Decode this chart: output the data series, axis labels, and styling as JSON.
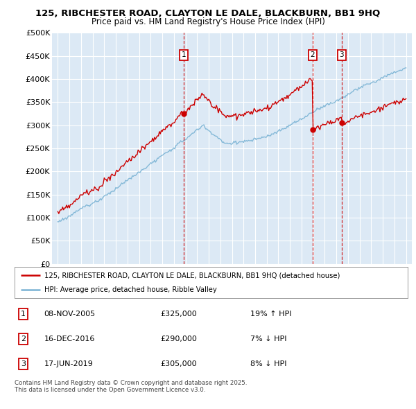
{
  "title1": "125, RIBCHESTER ROAD, CLAYTON LE DALE, BLACKBURN, BB1 9HQ",
  "title2": "Price paid vs. HM Land Registry's House Price Index (HPI)",
  "ylim": [
    0,
    500000
  ],
  "yticks": [
    0,
    50000,
    100000,
    150000,
    200000,
    250000,
    300000,
    350000,
    400000,
    450000,
    500000
  ],
  "ytick_labels": [
    "£0",
    "£50K",
    "£100K",
    "£150K",
    "£200K",
    "£250K",
    "£300K",
    "£350K",
    "£400K",
    "£450K",
    "£500K"
  ],
  "plot_bg_color": "#dce9f5",
  "grid_color": "#ffffff",
  "sale_color": "#cc0000",
  "hpi_color": "#7ab3d4",
  "vline_color": "#cc0000",
  "marker_box_color": "#cc0000",
  "sales": [
    {
      "date_num": 2005.86,
      "price": 325000,
      "label": "1"
    },
    {
      "date_num": 2016.96,
      "price": 290000,
      "label": "2"
    },
    {
      "date_num": 2019.46,
      "price": 305000,
      "label": "3"
    }
  ],
  "legend_sale_label": "125, RIBCHESTER ROAD, CLAYTON LE DALE, BLACKBURN, BB1 9HQ (detached house)",
  "legend_hpi_label": "HPI: Average price, detached house, Ribble Valley",
  "table_rows": [
    {
      "num": "1",
      "date": "08-NOV-2005",
      "price": "£325,000",
      "hpi": "19% ↑ HPI"
    },
    {
      "num": "2",
      "date": "16-DEC-2016",
      "price": "£290,000",
      "hpi": "7% ↓ HPI"
    },
    {
      "num": "3",
      "date": "17-JUN-2019",
      "price": "£305,000",
      "hpi": "8% ↓ HPI"
    }
  ],
  "footnote": "Contains HM Land Registry data © Crown copyright and database right 2025.\nThis data is licensed under the Open Government Licence v3.0.",
  "xlim_start": 1994.5,
  "xlim_end": 2025.5
}
